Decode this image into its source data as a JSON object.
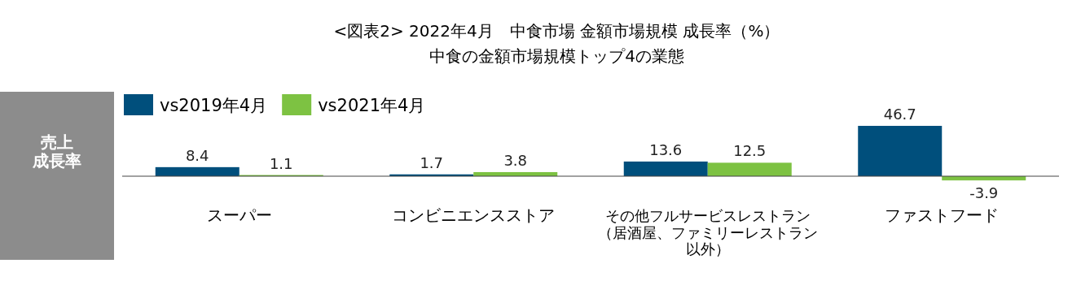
{
  "chart_data": {
    "type": "bar",
    "title": "<図表2> 2022年4月　中食市場 金額市場規模 成長率（%）",
    "subtitle": "中食の金額市場規模トップ4の業態",
    "ylabel": "売上成長率",
    "categories": [
      "スーパー",
      "コンビニエンスストア",
      "その他フルサービスレストラン（居酒屋、ファミリーレストラン以外）",
      "ファストフード"
    ],
    "series": [
      {
        "name": "vs2019年4月",
        "color": "#004f7c",
        "values": [
          8.4,
          1.7,
          13.6,
          46.7
        ]
      },
      {
        "name": "vs2021年4月",
        "color": "#7dc242",
        "values": [
          1.1,
          3.8,
          12.5,
          -3.9
        ]
      }
    ],
    "data_labels": true,
    "legend": "top left"
  }
}
